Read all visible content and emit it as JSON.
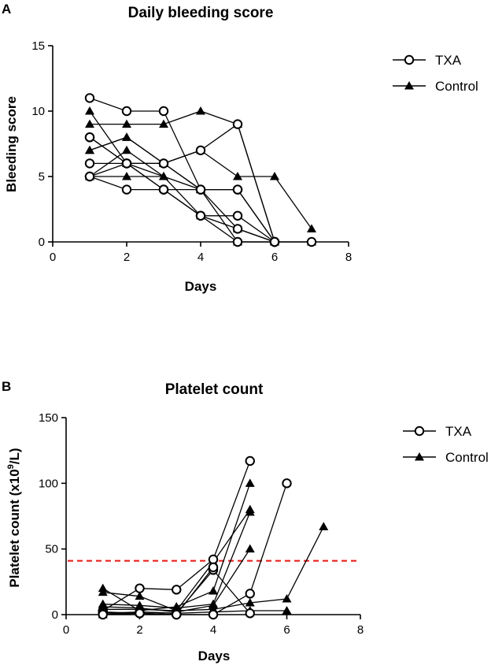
{
  "panels": [
    {
      "letter": "A",
      "title": "Daily bleeding score"
    },
    {
      "letter": "B",
      "title": "Platelet count"
    }
  ],
  "chart_data": [
    {
      "type": "line",
      "title": "Daily bleeding score",
      "xlabel": "Days",
      "ylabel": "Bleeding score",
      "xlim": [
        0,
        8
      ],
      "ylim": [
        0,
        15
      ],
      "xticks": [
        0,
        2,
        4,
        6,
        8
      ],
      "yticks": [
        0,
        5,
        10,
        15
      ],
      "legend": [
        "TXA",
        "Control"
      ],
      "legend_position": "top-right",
      "series": [
        {
          "name": "TXA",
          "x": [
            1,
            2,
            3,
            4,
            5,
            6
          ],
          "y": [
            11,
            10,
            10,
            4,
            4,
            0
          ]
        },
        {
          "name": "TXA",
          "x": [
            1,
            2,
            3,
            4,
            5,
            6
          ],
          "y": [
            8,
            6,
            6,
            7,
            9,
            0
          ]
        },
        {
          "name": "TXA",
          "x": [
            1,
            2,
            3,
            4,
            5,
            6
          ],
          "y": [
            6,
            6,
            6,
            4,
            4,
            0
          ]
        },
        {
          "name": "TXA",
          "x": [
            1,
            2,
            3,
            4,
            5,
            6
          ],
          "y": [
            5,
            4,
            4,
            2,
            2,
            0
          ]
        },
        {
          "name": "TXA",
          "x": [
            1,
            2,
            3,
            4,
            5,
            6
          ],
          "y": [
            8,
            6,
            4,
            2,
            0,
            0
          ]
        },
        {
          "name": "TXA",
          "x": [
            1,
            2,
            3,
            4,
            5,
            6
          ],
          "y": [
            5,
            6,
            4,
            4,
            1,
            0
          ]
        },
        {
          "name": "TXA",
          "x": [
            7
          ],
          "y": [
            0
          ]
        },
        {
          "name": "Control",
          "x": [
            1,
            2,
            3,
            4,
            5,
            6,
            7
          ],
          "y": [
            9,
            9,
            9,
            10,
            9,
            0,
            0
          ]
        },
        {
          "name": "Control",
          "x": [
            1,
            2,
            3,
            4,
            5,
            6
          ],
          "y": [
            10,
            6,
            5,
            2,
            1,
            0
          ]
        },
        {
          "name": "Control",
          "x": [
            1,
            2,
            3,
            4,
            5,
            6,
            7
          ],
          "y": [
            7,
            8,
            6,
            7,
            5,
            5,
            1
          ]
        },
        {
          "name": "Control",
          "x": [
            1,
            2,
            3,
            4,
            5
          ],
          "y": [
            7,
            8,
            6,
            4,
            0
          ]
        },
        {
          "name": "Control",
          "x": [
            1,
            2,
            3,
            4
          ],
          "y": [
            5,
            7,
            5,
            4
          ]
        },
        {
          "name": "Control",
          "x": [
            1,
            2,
            3
          ],
          "y": [
            5,
            5,
            5
          ]
        }
      ]
    },
    {
      "type": "line",
      "title": "Platelet count",
      "xlabel": "Days",
      "ylabel_main": "Platelet count  (x10",
      "ylabel_sup": "9",
      "ylabel_end": "/L)",
      "xlim": [
        0,
        8
      ],
      "ylim": [
        0,
        150
      ],
      "xticks": [
        0,
        2,
        4,
        6,
        8
      ],
      "yticks": [
        0,
        50,
        100,
        150
      ],
      "reference_line": {
        "y": 41,
        "color": "#e8231f",
        "style": "dashed"
      },
      "legend": [
        "TXA",
        "Control"
      ],
      "legend_position": "top-right",
      "series": [
        {
          "name": "TXA",
          "x": [
            1,
            2,
            3,
            4,
            5
          ],
          "y": [
            3,
            20,
            19,
            42,
            117
          ]
        },
        {
          "name": "TXA",
          "x": [
            1,
            2,
            3,
            4,
            5,
            6
          ],
          "y": [
            2,
            1,
            0,
            0,
            16,
            100
          ]
        },
        {
          "name": "TXA",
          "x": [
            1,
            2,
            3,
            4,
            5
          ],
          "y": [
            1,
            2,
            1,
            34,
            1
          ]
        },
        {
          "name": "TXA",
          "x": [
            1,
            2,
            3,
            4
          ],
          "y": [
            0,
            1,
            0,
            36
          ]
        },
        {
          "name": "Control",
          "x": [
            1,
            2,
            3,
            4,
            5
          ],
          "y": [
            20,
            3,
            6,
            18,
            100
          ]
        },
        {
          "name": "Control",
          "x": [
            1,
            2,
            3,
            4,
            5
          ],
          "y": [
            17,
            14,
            3,
            40,
            80
          ]
        },
        {
          "name": "Control",
          "x": [
            1,
            2,
            3,
            4,
            5
          ],
          "y": [
            8,
            7,
            5,
            8,
            78
          ]
        },
        {
          "name": "Control",
          "x": [
            1,
            2,
            3,
            4,
            5
          ],
          "y": [
            6,
            5,
            2,
            7,
            50
          ]
        },
        {
          "name": "Control",
          "x": [
            1,
            2,
            3,
            4,
            5,
            6,
            7
          ],
          "y": [
            4,
            4,
            3,
            4,
            9,
            12,
            67
          ]
        },
        {
          "name": "Control",
          "x": [
            1,
            2,
            3,
            4,
            5,
            6
          ],
          "y": [
            0,
            2,
            1,
            2,
            3,
            3
          ]
        }
      ]
    }
  ]
}
